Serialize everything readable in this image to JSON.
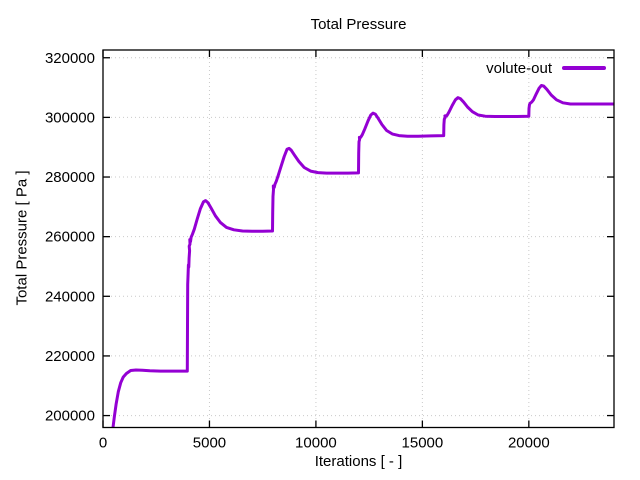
{
  "chart_data": {
    "type": "line",
    "title": "Total Pressure",
    "xlabel": "Iterations [ - ]",
    "ylabel": "Total Pressure [ Pa ]",
    "xlim": [
      0,
      24000
    ],
    "ylim": [
      196000,
      322600
    ],
    "xticks": [
      0,
      5000,
      10000,
      15000,
      20000
    ],
    "yticks": [
      200000,
      220000,
      240000,
      260000,
      280000,
      300000,
      320000
    ],
    "grid": true,
    "grid_style": "dotted",
    "legend_position": "top-right-inside",
    "colors": {
      "line": "#9400d3",
      "grid": "#c9c9c9",
      "border": "#000000",
      "text": "#000000",
      "background": "#ffffff"
    },
    "series": [
      {
        "name": "volute-out",
        "color": "#9400d3",
        "points": [
          [
            470,
            196000
          ],
          [
            530,
            199500
          ],
          [
            620,
            204000
          ],
          [
            720,
            208000
          ],
          [
            830,
            211000
          ],
          [
            950,
            212900
          ],
          [
            1100,
            214100
          ],
          [
            1300,
            215100
          ],
          [
            1550,
            215300
          ],
          [
            1850,
            215200
          ],
          [
            2200,
            215000
          ],
          [
            2700,
            214900
          ],
          [
            3200,
            214900
          ],
          [
            3700,
            214900
          ],
          [
            3960,
            214900
          ],
          [
            3970,
            230000
          ],
          [
            3980,
            244000
          ],
          [
            3995,
            247500
          ],
          [
            4010,
            250500
          ],
          [
            4030,
            249800
          ],
          [
            4045,
            252800
          ],
          [
            4065,
            255300
          ],
          [
            4050,
            256800
          ],
          [
            4085,
            257500
          ],
          [
            4075,
            259000
          ],
          [
            4110,
            258300
          ],
          [
            4140,
            259800
          ],
          [
            4200,
            260800
          ],
          [
            4290,
            262500
          ],
          [
            4420,
            265800
          ],
          [
            4570,
            269300
          ],
          [
            4720,
            271700
          ],
          [
            4820,
            272100
          ],
          [
            4930,
            271400
          ],
          [
            5080,
            269500
          ],
          [
            5280,
            267000
          ],
          [
            5520,
            264700
          ],
          [
            5800,
            263100
          ],
          [
            6150,
            262300
          ],
          [
            6550,
            261900
          ],
          [
            7000,
            261800
          ],
          [
            7500,
            261800
          ],
          [
            7960,
            261900
          ],
          [
            7970,
            268000
          ],
          [
            7985,
            273500
          ],
          [
            8010,
            275800
          ],
          [
            8000,
            277000
          ],
          [
            8040,
            276500
          ],
          [
            8080,
            277600
          ],
          [
            8140,
            278600
          ],
          [
            8230,
            280500
          ],
          [
            8360,
            283500
          ],
          [
            8510,
            286900
          ],
          [
            8640,
            289300
          ],
          [
            8740,
            289600
          ],
          [
            8840,
            289000
          ],
          [
            9000,
            287300
          ],
          [
            9200,
            285200
          ],
          [
            9450,
            283200
          ],
          [
            9750,
            282000
          ],
          [
            10100,
            281500
          ],
          [
            10500,
            281300
          ],
          [
            11000,
            281300
          ],
          [
            11500,
            281300
          ],
          [
            12000,
            281400
          ],
          [
            12010,
            288000
          ],
          [
            12025,
            291800
          ],
          [
            12050,
            292600
          ],
          [
            12040,
            293300
          ],
          [
            12100,
            293300
          ],
          [
            12180,
            294200
          ],
          [
            12300,
            296200
          ],
          [
            12450,
            298900
          ],
          [
            12580,
            300800
          ],
          [
            12680,
            301400
          ],
          [
            12790,
            301100
          ],
          [
            12930,
            299600
          ],
          [
            13100,
            297600
          ],
          [
            13320,
            295600
          ],
          [
            13600,
            294400
          ],
          [
            13900,
            293900
          ],
          [
            14300,
            293700
          ],
          [
            14800,
            293700
          ],
          [
            15400,
            293800
          ],
          [
            16000,
            293900
          ],
          [
            16010,
            297500
          ],
          [
            16030,
            299400
          ],
          [
            16080,
            300100
          ],
          [
            16060,
            300500
          ],
          [
            16150,
            300600
          ],
          [
            16250,
            301800
          ],
          [
            16400,
            304000
          ],
          [
            16550,
            305900
          ],
          [
            16670,
            306600
          ],
          [
            16780,
            306300
          ],
          [
            16930,
            305200
          ],
          [
            17120,
            303500
          ],
          [
            17350,
            301900
          ],
          [
            17620,
            300800
          ],
          [
            17950,
            300400
          ],
          [
            18400,
            300300
          ],
          [
            18900,
            300300
          ],
          [
            19450,
            300300
          ],
          [
            20000,
            300400
          ],
          [
            20010,
            303000
          ],
          [
            20030,
            304300
          ],
          [
            20070,
            304800
          ],
          [
            20130,
            305100
          ],
          [
            20220,
            305900
          ],
          [
            20350,
            307900
          ],
          [
            20480,
            309800
          ],
          [
            20590,
            310700
          ],
          [
            20700,
            310500
          ],
          [
            20850,
            309400
          ],
          [
            21050,
            307500
          ],
          [
            21300,
            305900
          ],
          [
            21600,
            304900
          ],
          [
            21950,
            304500
          ],
          [
            22400,
            304500
          ],
          [
            22900,
            304500
          ],
          [
            23400,
            304500
          ],
          [
            24000,
            304500
          ]
        ]
      }
    ]
  }
}
